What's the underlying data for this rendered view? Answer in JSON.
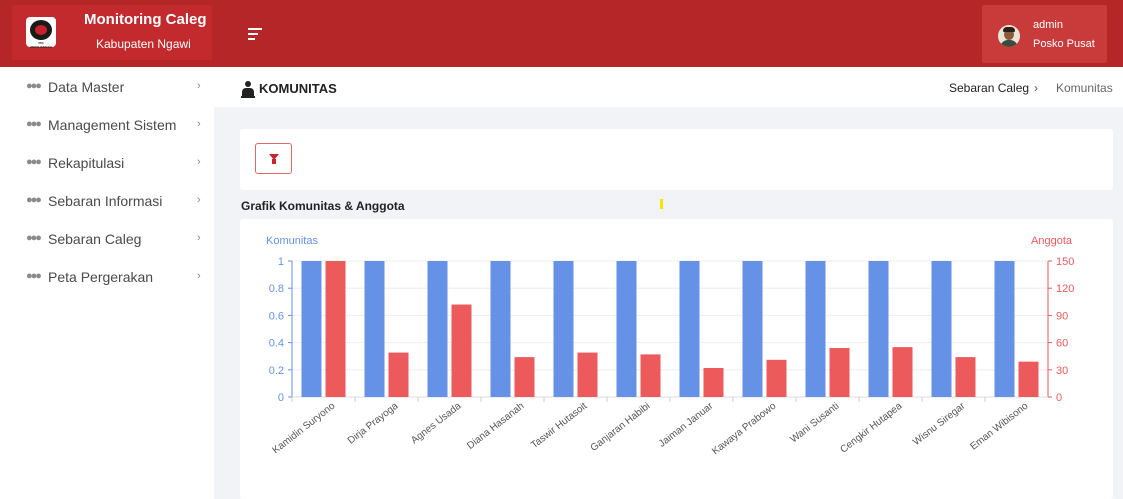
{
  "app": {
    "title": "Monitoring Caleg",
    "subtitle": "Kabupaten Ngawi",
    "logo_text": "PDI PERJUANGAN"
  },
  "user": {
    "name": "admin",
    "role": "Posko Pusat"
  },
  "sidebar": {
    "items": [
      {
        "label": "Data Master",
        "icon": "users-icon"
      },
      {
        "label": "Management Sistem",
        "icon": "users-icon"
      },
      {
        "label": "Rekapitulasi",
        "icon": "users-icon"
      },
      {
        "label": "Sebaran Informasi",
        "icon": "users-icon"
      },
      {
        "label": "Sebaran Caleg",
        "icon": "users-icon"
      },
      {
        "label": "Peta Pergerakan",
        "icon": "users-icon"
      }
    ],
    "chevron": "›"
  },
  "page": {
    "title": "KOMUNITAS",
    "breadcrumb": [
      "Sebaran Caleg",
      "Komunitas"
    ],
    "breadcrumb_sep": "›",
    "chart_heading": "Grafik Komunitas & Anggota"
  },
  "colors": {
    "header_red": "#b52629",
    "komunitas_blue": "#6592e6",
    "anggota_red": "#ec5a5c"
  },
  "chart_data": {
    "type": "bar",
    "categories": [
      "Kamidin Suryono",
      "Dirja Prayoga",
      "Agnes Usada",
      "Diana Hasanah",
      "Taswir Hutasoit",
      "Ganjaran Habibi",
      "Jaiman Januar",
      "Kawaya Prabowo",
      "Wani Susanti",
      "Cengkir Hutapea",
      "Wisnu Siregar",
      "Eman Wibisono"
    ],
    "series": [
      {
        "name": "Komunitas",
        "axis": "left",
        "values": [
          1,
          1,
          1,
          1,
          1,
          1,
          1,
          1,
          1,
          1,
          1,
          1
        ]
      },
      {
        "name": "Anggota",
        "axis": "right",
        "values": [
          150,
          49,
          102,
          44,
          49,
          47,
          32,
          41,
          54,
          55,
          44,
          39
        ]
      }
    ],
    "left_axis": {
      "label": "Komunitas",
      "ticks": [
        "0",
        "0.2",
        "0.4",
        "0.6",
        "0.8",
        "1"
      ],
      "range": [
        0,
        1
      ]
    },
    "right_axis": {
      "label": "Anggota",
      "ticks": [
        "0",
        "30",
        "60",
        "90",
        "120",
        "150"
      ],
      "range": [
        0,
        150
      ]
    },
    "grid": true
  }
}
